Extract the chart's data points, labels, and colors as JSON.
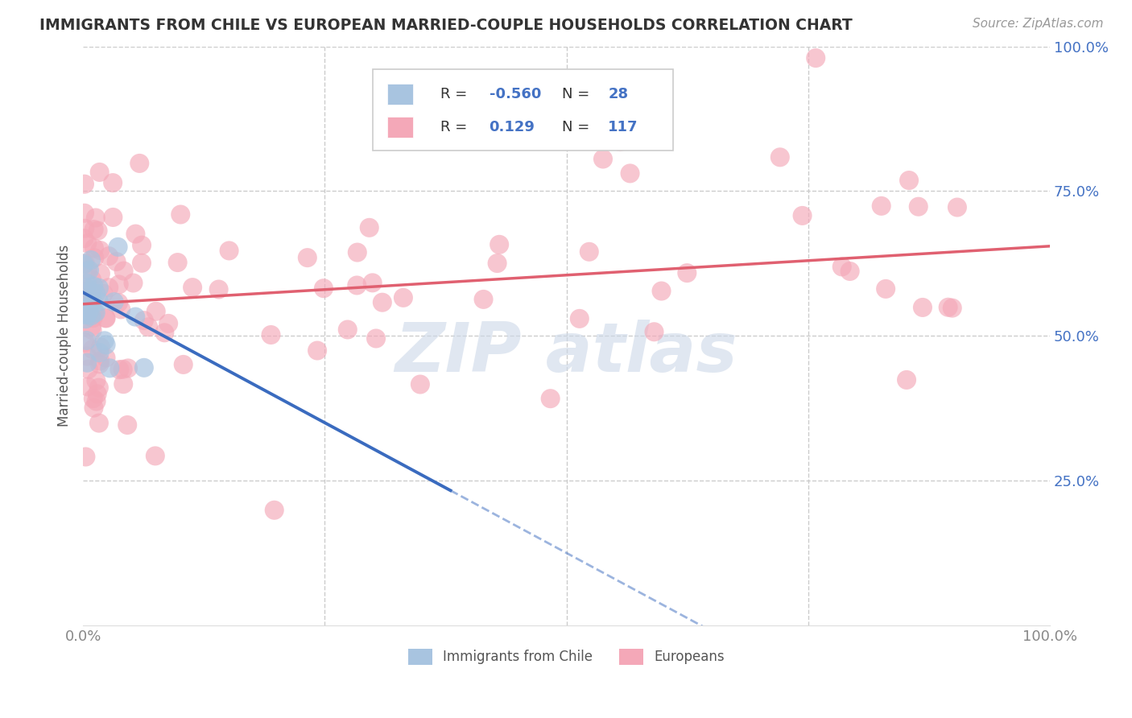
{
  "title": "IMMIGRANTS FROM CHILE VS EUROPEAN MARRIED-COUPLE HOUSEHOLDS CORRELATION CHART",
  "source": "Source: ZipAtlas.com",
  "ylabel": "Married-couple Households",
  "xlim": [
    0,
    1
  ],
  "ylim": [
    0,
    1
  ],
  "xticks": [
    0.0,
    1.0
  ],
  "xticklabels": [
    "0.0%",
    "100.0%"
  ],
  "yticks": [
    0.0,
    0.25,
    0.5,
    0.75,
    1.0
  ],
  "yticklabels": [
    "",
    "25.0%",
    "50.0%",
    "75.0%",
    "100.0%"
  ],
  "chile_R": -0.56,
  "chile_N": 28,
  "europe_R": 0.129,
  "europe_N": 117,
  "chile_color": "#a8c4e0",
  "europe_color": "#f4a8b8",
  "chile_line_color": "#3a6bbf",
  "europe_line_color": "#e06070",
  "background_color": "#ffffff",
  "grid_color": "#cccccc",
  "ytick_color": "#4472c4",
  "xtick_color": "#888888",
  "title_color": "#333333",
  "source_color": "#999999",
  "ylabel_color": "#555555",
  "legend_text_color": "#333333",
  "legend_value_color": "#4472c4",
  "watermark_color": "#ccd8e8",
  "chile_intercept": 0.575,
  "chile_slope": -0.9,
  "europe_intercept": 0.555,
  "europe_slope": 0.1
}
